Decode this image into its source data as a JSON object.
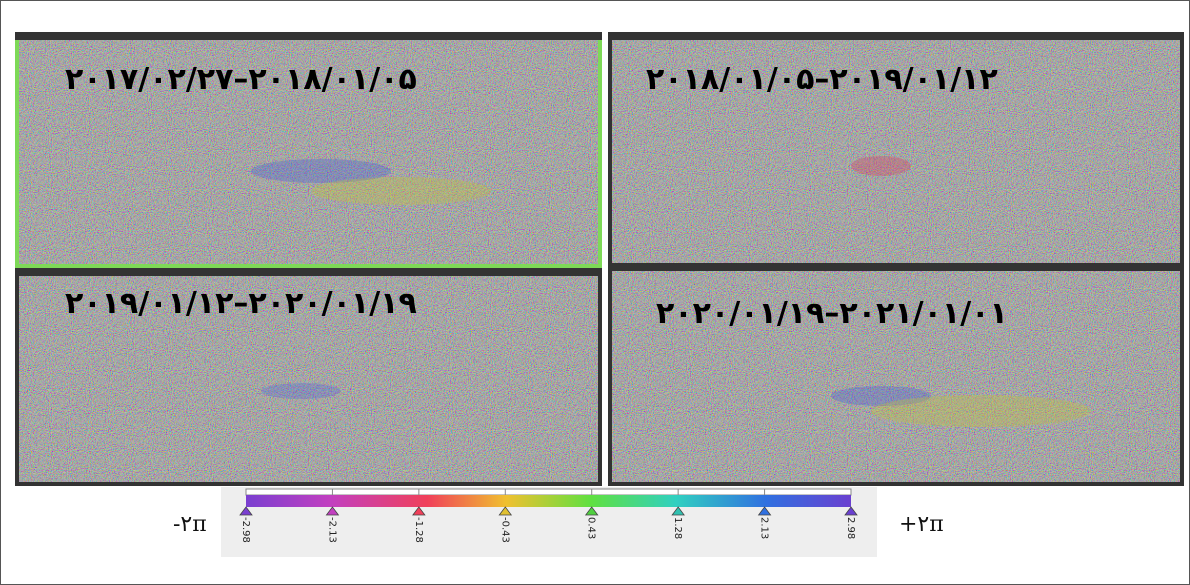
{
  "panels": [
    {
      "label": "۲۰۱۷/۰۲/۲۷–۲۰۱۸/۰۱/۰۵"
    },
    {
      "label": "۲۰۱۸/۰۱/۰۵–۲۰۱۹/۰۱/۱۲"
    },
    {
      "label": "۲۰۱۹/۰۱/۱۲–۲۰۲۰/۰۱/۱۹"
    },
    {
      "label": "۲۰۲۰/۰۱/۱۹–۲۰۲۱/۰۱/۰۱"
    }
  ],
  "colorbar": {
    "min_label": "-۲π",
    "max_label": "+۲π",
    "ticks": [
      "-2.98",
      "-2.13",
      "-1.28",
      "-0.43",
      "0.43",
      "1.28",
      "2.13",
      "2.98"
    ]
  }
}
